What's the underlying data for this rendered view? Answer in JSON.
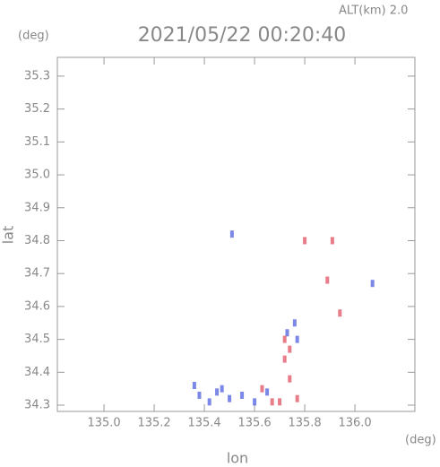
{
  "chart_data": {
    "type": "scatter",
    "title": "2021/05/22 00:20:40",
    "subtitle": "ALT(km) 2.0",
    "x_label": "lon",
    "x_unit": "(deg)",
    "y_label": "lat",
    "y_unit": "(deg)",
    "xlim": [
      134.814,
      136.239
    ],
    "ylim": [
      34.281,
      35.357
    ],
    "xticks": [
      {
        "value": 135.0,
        "label": "135.0"
      },
      135.2,
      135.4,
      135.6,
      135.8,
      {
        "value": 136.0,
        "label": "136.0"
      }
    ],
    "yticks": [
      34.3,
      34.4,
      34.5,
      34.6,
      34.7,
      34.8,
      34.9,
      {
        "value": 35.0,
        "label": "35.0"
      },
      35.1,
      35.2,
      35.3
    ],
    "series": [
      {
        "color": "#5060e0",
        "x": [
          135.51,
          135.38,
          135.42,
          135.45,
          135.5,
          135.55,
          135.6,
          135.73,
          135.76,
          136.07,
          135.77,
          135.36,
          135.47,
          135.65
        ],
        "values": [
          34.82,
          34.33,
          34.31,
          34.34,
          34.32,
          34.33,
          34.31,
          34.52,
          34.55,
          34.67,
          34.5,
          34.36,
          34.35,
          34.34
        ]
      },
      {
        "color": "#e05060",
        "x": [
          135.72,
          135.74,
          135.72,
          135.77,
          135.7,
          135.74,
          135.89,
          135.94,
          135.91,
          135.8,
          135.63,
          135.67
        ],
        "values": [
          34.5,
          34.47,
          34.44,
          34.32,
          34.31,
          34.38,
          34.68,
          34.58,
          34.8,
          34.8,
          34.35,
          34.31
        ]
      }
    ]
  }
}
